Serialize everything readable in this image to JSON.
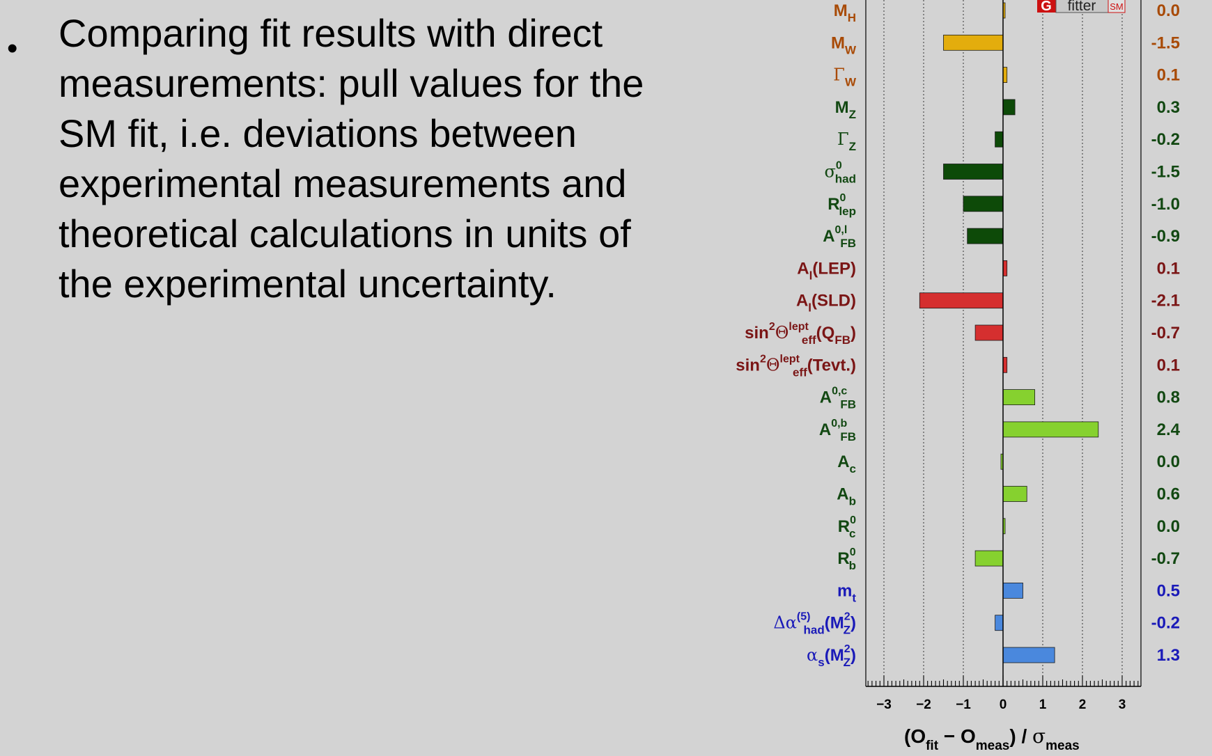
{
  "bullet": {
    "marker": "•",
    "text": "Comparing fit results with direct measurements: pull values for the SM fit, i.e. deviations between experimental measurements and theoretical calculations in units of the experimental uncertainty."
  },
  "logo": {
    "g": "G",
    "fitter": "fitter",
    "sm": "SM"
  },
  "chart_data": {
    "type": "bar",
    "orientation": "horizontal",
    "title": "",
    "xlabel": "(O_fit − O_meas) / σ_meas",
    "xlim": [
      -3.5,
      3.5
    ],
    "xticks": [
      -3,
      -2,
      -1,
      0,
      1,
      2,
      3
    ],
    "xtick_labels": [
      "−3",
      "−2",
      "−1",
      "0",
      "1",
      "2",
      "3"
    ],
    "grid": "dotted vertical lines at integer values",
    "categories": [
      "MH",
      "MW",
      "ΓW",
      "MZ",
      "ΓZ",
      "σ0had",
      "R0lep",
      "A0,lFB",
      "Al(LEP)",
      "Al(SLD)",
      "sin2Θlepteff(QFB)",
      "sin2Θlepteff(Tevt.)",
      "A0,cFB",
      "A0,bFB",
      "Ac",
      "Ab",
      "R0c",
      "R0b",
      "mt",
      "Δα(5)had(M2Z)",
      "αs(M2Z)"
    ],
    "values": [
      0.0,
      -1.5,
      0.1,
      0.3,
      -0.2,
      -1.5,
      -1.0,
      -0.9,
      0.1,
      -2.1,
      -0.7,
      0.1,
      0.8,
      2.4,
      0.0,
      0.6,
      0.0,
      -0.7,
      0.5,
      -0.2,
      1.3
    ],
    "value_labels": [
      "0.0",
      "-1.5",
      "0.1",
      "0.3",
      "-0.2",
      "-1.5",
      "-1.0",
      "-0.9",
      "0.1",
      "-2.1",
      "-0.7",
      "0.1",
      "0.8",
      "2.4",
      "0.0",
      "0.6",
      "0.0",
      "-0.7",
      "0.5",
      "-0.2",
      "1.3"
    ],
    "colors": {
      "orange": {
        "fill": "#e3ad0d",
        "text": "#a84a06"
      },
      "dark-green": {
        "fill": "#0d4a08",
        "text": "#124812"
      },
      "red": {
        "fill": "#d52f2f",
        "text": "#7a1515"
      },
      "light-green": {
        "fill": "#86d12f",
        "text": "#124812"
      },
      "blue": {
        "fill": "#4a88dd",
        "text": "#1a1ab8"
      }
    },
    "bar_groups": [
      "orange",
      "orange",
      "orange",
      "dark-green",
      "dark-green",
      "dark-green",
      "dark-green",
      "dark-green",
      "red",
      "red",
      "red",
      "red",
      "light-green",
      "light-green",
      "light-green",
      "light-green",
      "light-green",
      "light-green",
      "blue",
      "blue",
      "blue"
    ]
  }
}
